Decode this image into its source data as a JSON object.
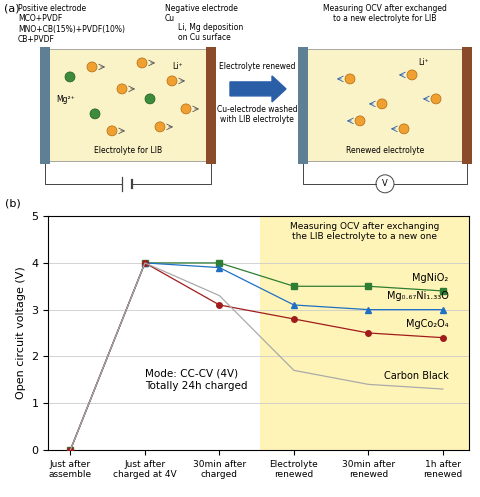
{
  "diagram": {
    "label": "(a)",
    "left_cell": {
      "positive_electrode": {
        "title": "Positive electrode",
        "materials": [
          "MCO+PVDF",
          "MNO+CB(15%)+PVDF(10%)",
          "CB+PVDF"
        ]
      },
      "negative_electrode": {
        "title": "Negative electrode",
        "material": "Cu",
        "note": "Li, Mg deposition\non Cu surface"
      },
      "ions": {
        "li": "Li⁺",
        "mg": "Mg²⁺"
      },
      "electrolyte": "Electrolyte for LIB"
    },
    "transition": {
      "above": "Electrolyte renewed",
      "below": "Cu-electrode washed\nwith LIB electrolyte"
    },
    "right_cell": {
      "title": "Measuring OCV after exchanged\nto a new electrolyte for LIB",
      "ion": "Li⁺",
      "electrolyte": "Renewed electrolyte",
      "meter": "V"
    }
  },
  "chart_data": {
    "type": "line",
    "label": "(b)",
    "y_label": "Open circuit voltage (V)",
    "categories": [
      "Just after\nassemble",
      "Just after\ncharged at 4V",
      "30min after\ncharged",
      "Electrolyte\nrenewed",
      "30min after\nrenewed",
      "1h after\nrenewed"
    ],
    "ylim": [
      0,
      5
    ],
    "yticks": [
      0,
      1,
      2,
      3,
      4,
      5
    ],
    "grid": true,
    "series": [
      {
        "name": "MgNiO₂",
        "color": "#2e7d32",
        "marker": "square",
        "values": [
          0,
          4.0,
          4.0,
          3.5,
          3.5,
          3.4
        ]
      },
      {
        "name": "Mg₀.₆₇Ni₁.₃₃O",
        "color": "#1f6fc4",
        "marker": "triangle",
        "values": [
          0,
          4.0,
          3.9,
          3.1,
          3.0,
          3.0
        ]
      },
      {
        "name": "MgCo₂O₄",
        "color": "#a01c1c",
        "marker": "circle",
        "values": [
          0,
          4.0,
          3.1,
          2.8,
          2.5,
          2.4
        ]
      },
      {
        "name": "Carbon Black",
        "color": "#aaaaaa",
        "marker": "none",
        "values": [
          0,
          4.0,
          3.3,
          1.7,
          1.4,
          1.3
        ]
      }
    ],
    "annotations": [
      {
        "text": "Mode: CC-CV (4V)\nTotally 24h charged"
      },
      {
        "text": "Measuring OCV after exchanging\nthe LIB electrolyte to a new one",
        "region_start": "Electrolyte\nrenewed"
      }
    ]
  }
}
